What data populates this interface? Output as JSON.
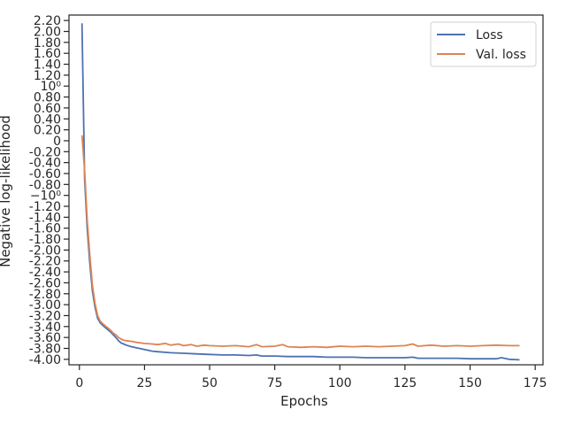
{
  "chart_data": {
    "type": "line",
    "xlabel": "Epochs",
    "ylabel": "Negative log-likelihood",
    "xlim": [
      -4,
      178
    ],
    "ylim": [
      -4.1,
      2.3
    ],
    "grid": false,
    "legend_position": "top-right",
    "x_ticks": [
      {
        "value": 0,
        "label": "0"
      },
      {
        "value": 25,
        "label": "25"
      },
      {
        "value": 50,
        "label": "50"
      },
      {
        "value": 75,
        "label": "75"
      },
      {
        "value": 100,
        "label": "100"
      },
      {
        "value": 125,
        "label": "125"
      },
      {
        "value": 150,
        "label": "150"
      },
      {
        "value": 175,
        "label": "175"
      }
    ],
    "y_ticks": [
      {
        "value": 2.2,
        "label": "2.20"
      },
      {
        "value": 2.0,
        "label": "2.00"
      },
      {
        "value": 1.8,
        "label": "1.80"
      },
      {
        "value": 1.6,
        "label": "1.60"
      },
      {
        "value": 1.4,
        "label": "1.40"
      },
      {
        "value": 1.2,
        "label": "1.20"
      },
      {
        "value": 1.0,
        "label": "10⁰"
      },
      {
        "value": 0.8,
        "label": "0.80"
      },
      {
        "value": 0.6,
        "label": "0.60"
      },
      {
        "value": 0.4,
        "label": "0.40"
      },
      {
        "value": 0.2,
        "label": "0.20"
      },
      {
        "value": 0.0,
        "label": "0"
      },
      {
        "value": -0.2,
        "label": "-0.20"
      },
      {
        "value": -0.4,
        "label": "-0.40"
      },
      {
        "value": -0.6,
        "label": "-0.60"
      },
      {
        "value": -0.8,
        "label": "-0.80"
      },
      {
        "value": -1.0,
        "label": "−10⁰"
      },
      {
        "value": -1.2,
        "label": "-1.20"
      },
      {
        "value": -1.4,
        "label": "-1.40"
      },
      {
        "value": -1.6,
        "label": "-1.60"
      },
      {
        "value": -1.8,
        "label": "-1.80"
      },
      {
        "value": -2.0,
        "label": "-2.00"
      },
      {
        "value": -2.2,
        "label": "-2.20"
      },
      {
        "value": -2.4,
        "label": "-2.40"
      },
      {
        "value": -2.6,
        "label": "-2.60"
      },
      {
        "value": -2.8,
        "label": "-2.80"
      },
      {
        "value": -3.0,
        "label": "-3.00"
      },
      {
        "value": -3.2,
        "label": "-3.20"
      },
      {
        "value": -3.4,
        "label": "-3.40"
      },
      {
        "value": -3.6,
        "label": "-3.60"
      },
      {
        "value": -3.8,
        "label": "-3.80"
      },
      {
        "value": -4.0,
        "label": "-4.00"
      }
    ],
    "series": [
      {
        "name": "Loss",
        "color": "#4c72b0",
        "points": [
          [
            1,
            2.15
          ],
          [
            2,
            -0.7
          ],
          [
            3,
            -1.6
          ],
          [
            4,
            -2.25
          ],
          [
            5,
            -2.75
          ],
          [
            6,
            -3.05
          ],
          [
            7,
            -3.25
          ],
          [
            8,
            -3.33
          ],
          [
            9,
            -3.38
          ],
          [
            10,
            -3.42
          ],
          [
            11,
            -3.46
          ],
          [
            12,
            -3.5
          ],
          [
            13,
            -3.55
          ],
          [
            14,
            -3.6
          ],
          [
            15,
            -3.66
          ],
          [
            16,
            -3.7
          ],
          [
            17,
            -3.72
          ],
          [
            18,
            -3.74
          ],
          [
            20,
            -3.77
          ],
          [
            22,
            -3.79
          ],
          [
            25,
            -3.82
          ],
          [
            28,
            -3.85
          ],
          [
            30,
            -3.86
          ],
          [
            35,
            -3.88
          ],
          [
            40,
            -3.89
          ],
          [
            45,
            -3.9
          ],
          [
            50,
            -3.91
          ],
          [
            55,
            -3.92
          ],
          [
            60,
            -3.92
          ],
          [
            65,
            -3.93
          ],
          [
            68,
            -3.92
          ],
          [
            70,
            -3.94
          ],
          [
            75,
            -3.94
          ],
          [
            80,
            -3.95
          ],
          [
            85,
            -3.95
          ],
          [
            90,
            -3.95
          ],
          [
            95,
            -3.96
          ],
          [
            100,
            -3.96
          ],
          [
            105,
            -3.96
          ],
          [
            110,
            -3.97
          ],
          [
            115,
            -3.97
          ],
          [
            120,
            -3.97
          ],
          [
            125,
            -3.97
          ],
          [
            128,
            -3.96
          ],
          [
            130,
            -3.98
          ],
          [
            135,
            -3.98
          ],
          [
            140,
            -3.98
          ],
          [
            145,
            -3.98
          ],
          [
            150,
            -3.99
          ],
          [
            155,
            -3.99
          ],
          [
            160,
            -3.99
          ],
          [
            162,
            -3.97
          ],
          [
            165,
            -4.0
          ],
          [
            169,
            -4.01
          ]
        ]
      },
      {
        "name": "Val. loss",
        "color": "#dd8452",
        "points": [
          [
            1,
            0.1
          ],
          [
            2,
            -0.55
          ],
          [
            3,
            -1.45
          ],
          [
            4,
            -2.1
          ],
          [
            5,
            -2.65
          ],
          [
            6,
            -2.98
          ],
          [
            7,
            -3.2
          ],
          [
            8,
            -3.3
          ],
          [
            9,
            -3.35
          ],
          [
            10,
            -3.39
          ],
          [
            11,
            -3.43
          ],
          [
            12,
            -3.47
          ],
          [
            13,
            -3.52
          ],
          [
            14,
            -3.55
          ],
          [
            15,
            -3.6
          ],
          [
            16,
            -3.63
          ],
          [
            17,
            -3.65
          ],
          [
            18,
            -3.66
          ],
          [
            20,
            -3.67
          ],
          [
            22,
            -3.69
          ],
          [
            25,
            -3.71
          ],
          [
            28,
            -3.72
          ],
          [
            30,
            -3.73
          ],
          [
            33,
            -3.71
          ],
          [
            35,
            -3.74
          ],
          [
            38,
            -3.72
          ],
          [
            40,
            -3.75
          ],
          [
            43,
            -3.73
          ],
          [
            45,
            -3.76
          ],
          [
            48,
            -3.74
          ],
          [
            50,
            -3.75
          ],
          [
            55,
            -3.76
          ],
          [
            60,
            -3.75
          ],
          [
            65,
            -3.77
          ],
          [
            68,
            -3.73
          ],
          [
            70,
            -3.77
          ],
          [
            75,
            -3.76
          ],
          [
            78,
            -3.73
          ],
          [
            80,
            -3.77
          ],
          [
            85,
            -3.78
          ],
          [
            90,
            -3.77
          ],
          [
            95,
            -3.78
          ],
          [
            100,
            -3.76
          ],
          [
            105,
            -3.77
          ],
          [
            110,
            -3.76
          ],
          [
            115,
            -3.77
          ],
          [
            120,
            -3.76
          ],
          [
            125,
            -3.75
          ],
          [
            128,
            -3.72
          ],
          [
            130,
            -3.76
          ],
          [
            135,
            -3.74
          ],
          [
            140,
            -3.76
          ],
          [
            145,
            -3.75
          ],
          [
            150,
            -3.76
          ],
          [
            155,
            -3.75
          ],
          [
            160,
            -3.74
          ],
          [
            165,
            -3.75
          ],
          [
            169,
            -3.75
          ]
        ]
      }
    ]
  }
}
